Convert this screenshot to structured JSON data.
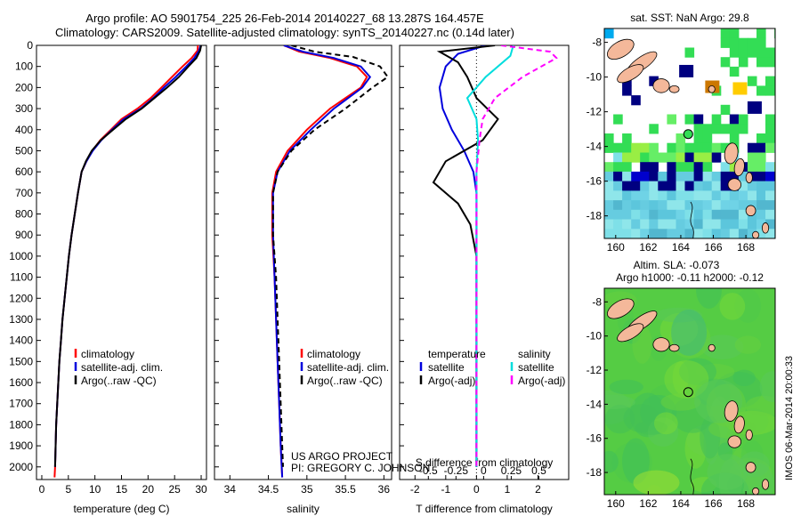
{
  "header": {
    "line1": "Argo profile: AO 5901754_225 26-Feb-2014 20140227_68 13.287S 164.457E",
    "line2": "Climatology: CARS2009. Satellite-adjusted climatology: synTS_20140227.nc (0.14d later)"
  },
  "credit": {
    "project": "US ARGO PROJECT",
    "pi": "PI: GREGORY C. JOHNSON"
  },
  "stamp": "IMOS 06-Mar-2014 20:00:33",
  "colors": {
    "climatology": "#ff0000",
    "satellite": "#0000dd",
    "argo": "#000000",
    "sat_salinity": "#00dddd",
    "argo_salinity": "#ff00ff"
  },
  "chart_data": [
    {
      "type": "line",
      "id": "temperature",
      "xlabel": "temperature (deg C)",
      "xlim": [
        -1,
        31
      ],
      "xticks": [
        0,
        5,
        10,
        15,
        20,
        25,
        30
      ],
      "ylim": [
        0,
        2060
      ],
      "yticks": [
        0,
        100,
        200,
        300,
        400,
        500,
        600,
        700,
        800,
        900,
        1000,
        1100,
        1200,
        1300,
        1400,
        1500,
        1600,
        1700,
        1800,
        1900,
        2000
      ],
      "legend": [
        "climatology",
        "satellite-adj. clim.",
        "Argo(..raw -QC)"
      ],
      "series": [
        {
          "name": "climatology",
          "color": "#ff0000",
          "points": [
            [
              29.4,
              0
            ],
            [
              29.3,
              25
            ],
            [
              28.2,
              60
            ],
            [
              26.5,
              100
            ],
            [
              24.5,
              150
            ],
            [
              22.5,
              200
            ],
            [
              20.5,
              250
            ],
            [
              18,
              300
            ],
            [
              15,
              350
            ],
            [
              13,
              400
            ],
            [
              11,
              450
            ],
            [
              9.5,
              500
            ],
            [
              8.4,
              550
            ],
            [
              7.5,
              600
            ],
            [
              6.8,
              700
            ],
            [
              6.2,
              800
            ],
            [
              5.6,
              900
            ],
            [
              5.1,
              1000
            ],
            [
              4.7,
              1100
            ],
            [
              4.3,
              1200
            ],
            [
              3.9,
              1300
            ],
            [
              3.6,
              1400
            ],
            [
              3.3,
              1500
            ],
            [
              3.1,
              1600
            ],
            [
              2.9,
              1700
            ],
            [
              2.7,
              1800
            ],
            [
              2.6,
              1900
            ],
            [
              2.5,
              2000
            ],
            [
              2.4,
              2050
            ]
          ]
        },
        {
          "name": "satellite-adj. clim.",
          "color": "#0000dd",
          "points": [
            [
              29.9,
              0
            ],
            [
              29.6,
              25
            ],
            [
              28.7,
              60
            ],
            [
              27.2,
              100
            ],
            [
              25.2,
              150
            ],
            [
              23,
              200
            ],
            [
              21,
              250
            ],
            [
              18.6,
              300
            ],
            [
              15.4,
              350
            ],
            [
              13.2,
              400
            ],
            [
              11.2,
              450
            ],
            [
              9.6,
              500
            ],
            [
              8.4,
              550
            ],
            [
              7.5,
              600
            ],
            [
              6.8,
              700
            ],
            [
              6.2,
              800
            ],
            [
              5.6,
              900
            ],
            [
              5.1,
              1000
            ],
            [
              4.7,
              1100
            ],
            [
              4.3,
              1200
            ],
            [
              3.9,
              1300
            ],
            [
              3.6,
              1400
            ],
            [
              3.3,
              1500
            ],
            [
              3.1,
              1600
            ],
            [
              2.9,
              1700
            ],
            [
              2.7,
              1800
            ],
            [
              2.6,
              1900
            ],
            [
              2.5,
              2000
            ]
          ]
        },
        {
          "name": "Argo(..raw -QC)",
          "color": "#000000",
          "points": [
            [
              30,
              0
            ],
            [
              29.8,
              25
            ],
            [
              29.1,
              60
            ],
            [
              27.6,
              100
            ],
            [
              25.8,
              150
            ],
            [
              23.6,
              200
            ],
            [
              21.2,
              250
            ],
            [
              18.8,
              300
            ],
            [
              15.8,
              350
            ],
            [
              13.4,
              400
            ],
            [
              11.1,
              450
            ],
            [
              9.4,
              500
            ],
            [
              8.3,
              550
            ],
            [
              7.5,
              600
            ],
            [
              6.8,
              700
            ],
            [
              6.2,
              800
            ],
            [
              5.6,
              900
            ],
            [
              5.1,
              1000
            ],
            [
              4.7,
              1100
            ],
            [
              4.3,
              1200
            ],
            [
              3.9,
              1300
            ],
            [
              3.6,
              1400
            ],
            [
              3.3,
              1500
            ],
            [
              3.1,
              1600
            ],
            [
              2.9,
              1700
            ],
            [
              2.7,
              1800
            ],
            [
              2.6,
              1900
            ],
            [
              2.5,
              2000
            ]
          ]
        }
      ]
    },
    {
      "type": "line",
      "id": "salinity",
      "xlabel": "salinity",
      "xlim": [
        33.8,
        36.1
      ],
      "xticks": [
        34,
        34.5,
        35,
        35.5,
        36
      ],
      "ylim": [
        0,
        2060
      ],
      "legend": [
        "climatology",
        "satellite-adj. clim.",
        "Argo(..raw -QC)"
      ],
      "series": [
        {
          "name": "climatology",
          "color": "#ff0000",
          "points": [
            [
              34.7,
              0
            ],
            [
              34.9,
              30
            ],
            [
              35.3,
              60
            ],
            [
              35.65,
              100
            ],
            [
              35.78,
              150
            ],
            [
              35.7,
              200
            ],
            [
              35.3,
              300
            ],
            [
              35,
              400
            ],
            [
              34.75,
              500
            ],
            [
              34.6,
              600
            ],
            [
              34.55,
              700
            ],
            [
              34.55,
              900
            ],
            [
              34.58,
              1100
            ],
            [
              34.6,
              1300
            ],
            [
              34.62,
              1500
            ],
            [
              34.64,
              1700
            ],
            [
              34.66,
              1900
            ],
            [
              34.68,
              2050
            ]
          ]
        },
        {
          "name": "satellite-adj. clim.",
          "color": "#0000dd",
          "points": [
            [
              34.7,
              0
            ],
            [
              34.95,
              30
            ],
            [
              35.35,
              60
            ],
            [
              35.7,
              100
            ],
            [
              35.82,
              150
            ],
            [
              35.72,
              200
            ],
            [
              35.35,
              300
            ],
            [
              35.05,
              400
            ],
            [
              34.78,
              500
            ],
            [
              34.62,
              600
            ],
            [
              34.56,
              700
            ],
            [
              34.56,
              900
            ],
            [
              34.58,
              1100
            ],
            [
              34.6,
              1300
            ],
            [
              34.62,
              1500
            ],
            [
              34.64,
              1700
            ],
            [
              34.66,
              1900
            ],
            [
              34.68,
              2050
            ]
          ]
        },
        {
          "name": "Argo(..raw -QC)",
          "color": "#000000",
          "points": [
            [
              34.8,
              0
            ],
            [
              35.1,
              30
            ],
            [
              35.6,
              55
            ],
            [
              35.95,
              100
            ],
            [
              36.05,
              150
            ],
            [
              35.85,
              200
            ],
            [
              35.5,
              300
            ],
            [
              35.1,
              400
            ],
            [
              34.8,
              500
            ],
            [
              34.62,
              600
            ],
            [
              34.56,
              700
            ],
            [
              34.56,
              900
            ],
            [
              34.6,
              1100
            ],
            [
              34.62,
              1300
            ],
            [
              34.64,
              1500
            ],
            [
              34.66,
              1700
            ],
            [
              34.68,
              1900
            ],
            [
              34.69,
              2000
            ]
          ]
        }
      ]
    },
    {
      "type": "line",
      "id": "difference",
      "xlabel": "T difference from climatology",
      "x2label": "S difference from climatology",
      "xlim": [
        -2.5,
        3
      ],
      "xticks": [
        -2,
        -1,
        0,
        1,
        2
      ],
      "x2ticks": [
        {
          "v": -0.5,
          "label": "-0.5"
        },
        {
          "v": -0.25,
          "label": "-0.25"
        },
        {
          "v": 0,
          "label": "0"
        },
        {
          "v": 0.25,
          "label": "0.25"
        },
        {
          "v": 0.5,
          "label": "0.5"
        }
      ],
      "ylim": [
        0,
        2060
      ],
      "legend_t": {
        "title": "temperature",
        "items": [
          "satellite",
          "Argo(-adj)"
        ]
      },
      "legend_s": {
        "title": "salinity",
        "items": [
          "satellite",
          "Argo(-adj)"
        ]
      },
      "series": [
        {
          "name": "satellite",
          "color": "#0000dd",
          "points": [
            [
              0.3,
              0
            ],
            [
              -0.6,
              40
            ],
            [
              -1,
              100
            ],
            [
              -1.2,
              200
            ],
            [
              -1.1,
              300
            ],
            [
              -0.8,
              400
            ],
            [
              -0.4,
              500
            ],
            [
              -0.1,
              600
            ],
            [
              0,
              700
            ],
            [
              0,
              2000
            ]
          ]
        },
        {
          "name": "Argo(-adj)",
          "color": "#000000",
          "points": [
            [
              0.6,
              0
            ],
            [
              -1.2,
              30
            ],
            [
              -0.6,
              80
            ],
            [
              -0.3,
              150
            ],
            [
              0,
              250
            ],
            [
              0.7,
              350
            ],
            [
              0.2,
              450
            ],
            [
              -1,
              550
            ],
            [
              -1.4,
              650
            ],
            [
              -0.6,
              750
            ],
            [
              -0.2,
              850
            ],
            [
              0,
              1000
            ],
            [
              0,
              2000
            ]
          ]
        },
        {
          "name": "satellite",
          "color": "#00dddd",
          "points": [
            [
              1.2,
              0
            ],
            [
              1.1,
              50
            ],
            [
              0.3,
              150
            ],
            [
              -0.3,
              250
            ],
            [
              0,
              350
            ],
            [
              0.05,
              450
            ],
            [
              0,
              600
            ],
            [
              0,
              2000
            ]
          ]
        },
        {
          "name": "Argo(-adj)",
          "color": "#ff00ff",
          "points": [
            [
              0.8,
              0
            ],
            [
              2.4,
              30
            ],
            [
              2.6,
              60
            ],
            [
              1.5,
              150
            ],
            [
              0.6,
              250
            ],
            [
              0.2,
              350
            ],
            [
              0.1,
              450
            ],
            [
              0,
              600
            ],
            [
              0,
              2000
            ]
          ]
        }
      ]
    },
    {
      "type": "heatmap",
      "id": "sst_map",
      "title": "sat. SST: NaN Argo: 29.8",
      "xlim": [
        159.3,
        169.8
      ],
      "ylim": [
        -19.3,
        -7.2
      ],
      "xticks": [
        160,
        162,
        164,
        166,
        168
      ],
      "yticks": [
        -8,
        -10,
        -12,
        -14,
        -16,
        -18
      ],
      "profile": [
        164.457,
        -13.287
      ]
    },
    {
      "type": "heatmap",
      "id": "sla_map",
      "title": "Altim. SLA: -0.073",
      "subtitle": "Argo h1000: -0.11 h2000: -0.12",
      "xlim": [
        159.3,
        169.8
      ],
      "ylim": [
        -19.3,
        -7.2
      ],
      "xticks": [
        160,
        162,
        164,
        166,
        168
      ],
      "yticks": [
        -8,
        -10,
        -12,
        -14,
        -16,
        -18
      ],
      "profile": [
        164.457,
        -13.287
      ]
    }
  ]
}
